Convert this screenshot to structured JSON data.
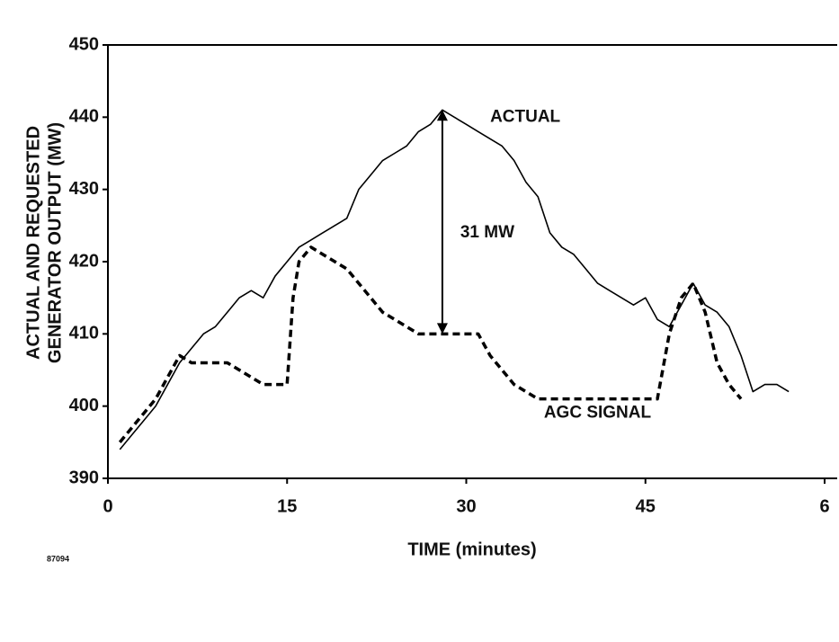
{
  "chart_data": {
    "type": "line",
    "xlabel": "TIME (minutes)",
    "ylabel": [
      "ACTUAL AND REQUESTED",
      "GENERATOR OUTPUT  (MW)"
    ],
    "xlim": [
      0,
      60
    ],
    "ylim": [
      390,
      450
    ],
    "xticks": [
      0,
      15,
      30,
      45,
      {
        "value": 60,
        "label": "6"
      }
    ],
    "yticks": [
      390,
      400,
      410,
      420,
      430,
      440,
      450
    ],
    "series": [
      {
        "name": "ACTUAL",
        "color": "#000000",
        "dash": false,
        "x": [
          1,
          2,
          3,
          4,
          5,
          6,
          7,
          8,
          9,
          10,
          11,
          12,
          13,
          14,
          15,
          16,
          17,
          18,
          19,
          20,
          21,
          22,
          23,
          24,
          25,
          26,
          27,
          28,
          29,
          30,
          31,
          32,
          33,
          34,
          35,
          36,
          37,
          38,
          39,
          40,
          41,
          42,
          43,
          44,
          45,
          46,
          47,
          48,
          49,
          50,
          51,
          52,
          53,
          54,
          55,
          56,
          57
        ],
        "values": [
          394,
          396,
          398,
          400,
          403,
          406,
          408,
          410,
          411,
          413,
          415,
          416,
          415,
          418,
          420,
          422,
          423,
          424,
          425,
          426,
          430,
          432,
          434,
          435,
          436,
          438,
          439,
          441,
          440,
          439,
          438,
          437,
          436,
          434,
          431,
          429,
          424,
          422,
          421,
          419,
          417,
          416,
          415,
          414,
          415,
          412,
          411,
          414,
          417,
          414,
          413,
          411,
          407,
          402,
          403,
          403,
          402
        ]
      },
      {
        "name": "AGC SIGNAL",
        "color": "#000000",
        "dash": true,
        "x": [
          1,
          2,
          3,
          4,
          5,
          6,
          7,
          8,
          9,
          10,
          11,
          12,
          13,
          14,
          15,
          15.5,
          16,
          17,
          18,
          19,
          20,
          21,
          22,
          23,
          24,
          25,
          26,
          27,
          28,
          29,
          30,
          31,
          32,
          33,
          34,
          35,
          36,
          37,
          38,
          39,
          40,
          41,
          42,
          43,
          44,
          45,
          46,
          47,
          48,
          49,
          50,
          51,
          52,
          53
        ],
        "values": [
          395,
          397,
          399,
          401,
          404,
          407,
          406,
          406,
          406,
          406,
          405,
          404,
          403,
          403,
          403,
          415,
          420,
          422,
          421,
          420,
          419,
          417,
          415,
          413,
          412,
          411,
          410,
          410,
          410,
          410,
          410,
          410,
          407,
          405,
          403,
          402,
          401,
          401,
          401,
          401,
          401,
          401,
          401,
          401,
          401,
          401,
          401,
          410,
          415,
          417,
          413,
          406,
          403,
          401
        ]
      }
    ],
    "annotations": [
      {
        "text": "ACTUAL",
        "x": 32,
        "y": 440
      },
      {
        "text": "31 MW",
        "x": 29.5,
        "y": 424
      },
      {
        "text": "AGC SIGNAL",
        "x": 36.5,
        "y": 399
      }
    ],
    "arrow": {
      "x": 28,
      "from": 410,
      "to": 441
    },
    "figure_id": "87094"
  }
}
